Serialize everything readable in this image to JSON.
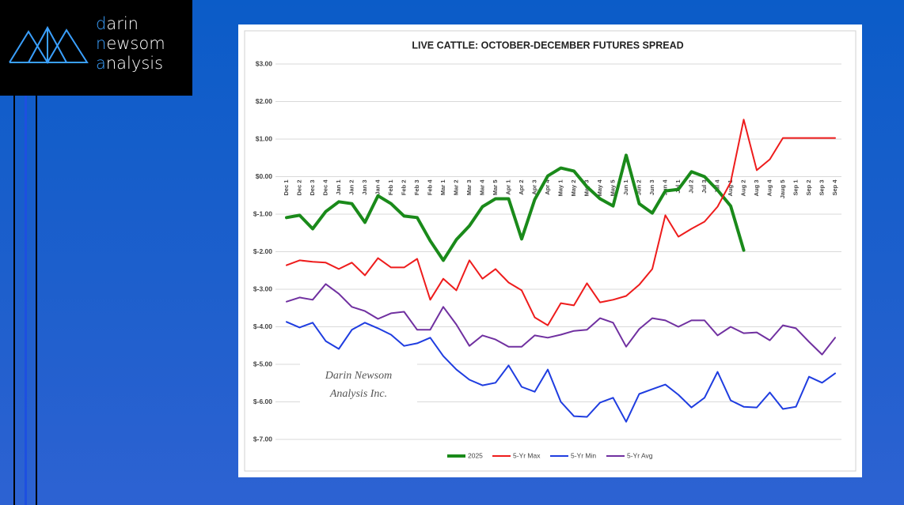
{
  "logo": {
    "line1": "darin",
    "line2": "newsom",
    "line3": "analysis"
  },
  "watermark": {
    "line1": "Darin Newsom",
    "line2": "Analysis Inc."
  },
  "chart_data": {
    "type": "line",
    "title": "LIVE CATTLE: OCTOBER-DECEMBER FUTURES SPREAD",
    "categories": [
      "Dec 1",
      "Dec 2",
      "Dec 3",
      "Dec 4",
      "Jan 1",
      "Jan 2",
      "Jan 3",
      "Jan 4",
      "Feb 1",
      "Feb 2",
      "Feb 3",
      "Feb 4",
      "Mar 1",
      "Mar 2",
      "Mar 3",
      "Mar 4",
      "Mar 5",
      "Apr 1",
      "Apr 2",
      "Apr 3",
      "Apr 4",
      "May 1",
      "May 2",
      "May 3",
      "May 4",
      "May 5",
      "Jun 1",
      "Jun 2",
      "Jun 3",
      "Jun 4",
      "Jul 1",
      "Jul 2",
      "Jul 3",
      "Jul 4",
      "Aug 1",
      "Aug 2",
      "Aug 3",
      "Aug 4",
      "Jaug 5",
      "Sep 1",
      "Sep 2",
      "Sep 3",
      "Sep 4"
    ],
    "series": [
      {
        "name": "2025",
        "color": "#1a8a1a",
        "width": 4,
        "values": [
          -1.09,
          -1.03,
          -1.39,
          -0.93,
          -0.67,
          -0.72,
          -1.22,
          -0.51,
          -0.72,
          -1.05,
          -1.09,
          -1.71,
          -2.23,
          -1.68,
          -1.31,
          -0.8,
          -0.59,
          -0.59,
          -1.66,
          -0.61,
          0.02,
          0.23,
          0.15,
          -0.27,
          -0.59,
          -0.78,
          0.57,
          -0.72,
          -0.97,
          -0.38,
          -0.34,
          0.13,
          0.0,
          -0.36,
          -0.78,
          -1.96,
          null,
          null,
          null,
          null,
          null,
          null,
          null
        ]
      },
      {
        "name": "5-Yr Max",
        "color": "#ee1c1c",
        "width": 2,
        "values": [
          -2.36,
          -2.23,
          -2.27,
          -2.29,
          -2.46,
          -2.29,
          -2.63,
          -2.17,
          -2.42,
          -2.42,
          -2.19,
          -3.28,
          -2.72,
          -3.03,
          -2.23,
          -2.72,
          -2.46,
          -2.82,
          -3.03,
          -3.75,
          -3.96,
          -3.37,
          -3.43,
          -2.84,
          -3.35,
          -3.28,
          -3.18,
          -2.88,
          -2.46,
          -1.03,
          -1.6,
          -1.39,
          -1.2,
          -0.8,
          -0.15,
          1.52,
          0.17,
          0.46,
          1.03,
          1.03,
          1.03,
          1.03,
          1.03
        ]
      },
      {
        "name": "5-Yr Min",
        "color": "#1f3de0",
        "width": 2,
        "values": [
          -3.87,
          -4.02,
          -3.89,
          -4.38,
          -4.59,
          -4.08,
          -3.89,
          -4.04,
          -4.21,
          -4.51,
          -4.44,
          -4.29,
          -4.78,
          -5.14,
          -5.41,
          -5.56,
          -5.49,
          -5.03,
          -5.6,
          -5.73,
          -5.14,
          -6.0,
          -6.38,
          -6.4,
          -6.02,
          -5.89,
          -6.53,
          -5.79,
          -5.66,
          -5.54,
          -5.81,
          -6.15,
          -5.89,
          -5.2,
          -5.96,
          -6.13,
          -6.15,
          -5.75,
          -6.19,
          -6.13,
          -5.33,
          -5.49,
          -5.24
        ]
      },
      {
        "name": "5-Yr Avg",
        "color": "#7030a0",
        "width": 2,
        "values": [
          -3.33,
          -3.22,
          -3.28,
          -2.86,
          -3.12,
          -3.47,
          -3.58,
          -3.79,
          -3.64,
          -3.6,
          -4.08,
          -4.08,
          -3.47,
          -3.94,
          -4.51,
          -4.23,
          -4.34,
          -4.53,
          -4.53,
          -4.23,
          -4.29,
          -4.21,
          -4.11,
          -4.08,
          -3.77,
          -3.89,
          -4.53,
          -4.06,
          -3.77,
          -3.83,
          -4.0,
          -3.83,
          -3.83,
          -4.23,
          -4.0,
          -4.17,
          -4.15,
          -4.36,
          -3.96,
          -4.04,
          -4.4,
          -4.74,
          -4.29
        ]
      }
    ],
    "ylim": [
      -7,
      3
    ],
    "yticks": [
      {
        "value": 3,
        "label": "$3.00"
      },
      {
        "value": 2,
        "label": "$2.00"
      },
      {
        "value": 1,
        "label": "$1.00"
      },
      {
        "value": 0,
        "label": "$0.00"
      },
      {
        "value": -1,
        "label": "$-1.00"
      },
      {
        "value": -2,
        "label": "$-2.00"
      },
      {
        "value": -3,
        "label": "$-3.00"
      },
      {
        "value": -4,
        "label": "$-4.00"
      },
      {
        "value": -5,
        "label": "$-5.00"
      },
      {
        "value": -6,
        "label": "$-6.00"
      },
      {
        "value": -7,
        "label": "$-7.00"
      }
    ],
    "grid": true,
    "legend": "bottom"
  }
}
